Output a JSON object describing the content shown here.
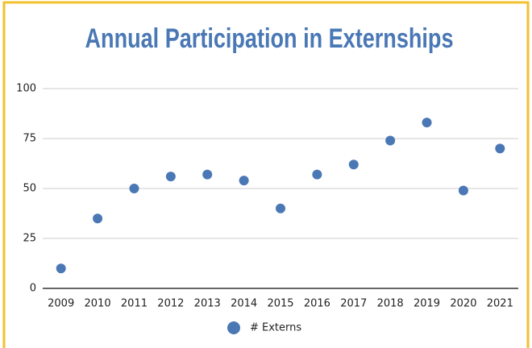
{
  "chart_data": {
    "type": "scatter",
    "title": "Annual Participation in Externships",
    "categories": [
      "2009",
      "2010",
      "2011",
      "2012",
      "2013",
      "2014",
      "2015",
      "2016",
      "2017",
      "2018",
      "2019",
      "2020",
      "2021"
    ],
    "series": [
      {
        "name": "# Externs",
        "color": "#4a78b5",
        "values": [
          10,
          35,
          50,
          56,
          57,
          54,
          40,
          57,
          62,
          74,
          83,
          49,
          70
        ]
      }
    ],
    "ylim": [
      0,
      100
    ],
    "yticks": [
      0,
      25,
      50,
      75,
      100
    ],
    "grid": true,
    "legend": "bottom"
  }
}
